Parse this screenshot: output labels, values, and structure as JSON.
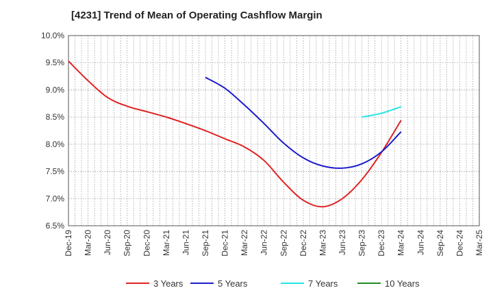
{
  "title": "[4231]  Trend of Mean of Operating Cashflow Margin",
  "chart_data": {
    "type": "line",
    "title": "[4231]  Trend of Mean of Operating Cashflow Margin",
    "xlabel": "",
    "ylabel": "",
    "ylim": [
      6.5,
      10.0
    ],
    "yticks": [
      "10.0%",
      "9.5%",
      "9.0%",
      "8.5%",
      "8.0%",
      "7.5%",
      "7.0%",
      "6.5%"
    ],
    "ytick_values": [
      10.0,
      9.5,
      9.0,
      8.5,
      8.0,
      7.5,
      7.0,
      6.5
    ],
    "xticks": [
      "Dec-19",
      "Mar-20",
      "Jun-20",
      "Sep-20",
      "Dec-20",
      "Mar-21",
      "Jun-21",
      "Sep-21",
      "Dec-21",
      "Mar-22",
      "Jun-22",
      "Sep-22",
      "Dec-22",
      "Mar-23",
      "Jun-23",
      "Sep-23",
      "Dec-23",
      "Mar-24",
      "Jun-24",
      "Sep-24",
      "Dec-24",
      "Mar-25"
    ],
    "grid": true,
    "legend_position": "bottom",
    "series": [
      {
        "name": "3 Years",
        "color": "#e02020",
        "x": [
          "Dec-19",
          "Mar-20",
          "Jun-20",
          "Sep-20",
          "Dec-20",
          "Mar-21",
          "Jun-21",
          "Sep-21",
          "Dec-21",
          "Mar-22",
          "Jun-22",
          "Sep-22",
          "Dec-22",
          "Mar-23",
          "Jun-23",
          "Sep-23",
          "Dec-23",
          "Mar-24"
        ],
        "values": [
          9.53,
          9.17,
          8.86,
          8.7,
          8.6,
          8.5,
          8.38,
          8.25,
          8.1,
          7.95,
          7.7,
          7.3,
          6.97,
          6.85,
          7.0,
          7.35,
          7.85,
          8.44
        ]
      },
      {
        "name": "5 Years",
        "color": "#1a1acc",
        "x": [
          "Sep-21",
          "Dec-21",
          "Mar-22",
          "Jun-22",
          "Sep-22",
          "Dec-22",
          "Mar-23",
          "Jun-23",
          "Sep-23",
          "Dec-23",
          "Mar-24"
        ],
        "values": [
          9.23,
          9.03,
          8.72,
          8.38,
          8.02,
          7.75,
          7.6,
          7.56,
          7.64,
          7.86,
          8.23
        ]
      },
      {
        "name": "7 Years",
        "color": "#22e5e5",
        "x": [
          "Sep-23",
          "Dec-23",
          "Mar-24"
        ],
        "values": [
          8.5,
          8.57,
          8.69
        ]
      },
      {
        "name": "10 Years",
        "color": "#1f8a1f",
        "x": [],
        "values": []
      }
    ]
  }
}
